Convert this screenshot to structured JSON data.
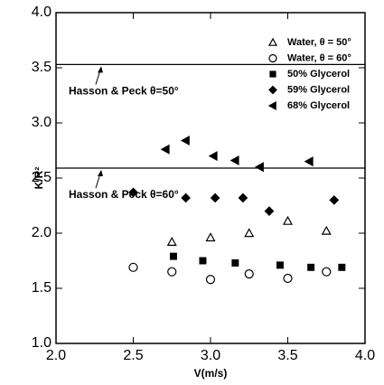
{
  "chart_data": {
    "type": "scatter",
    "xlabel": "V(m/s)",
    "ylabel": "K/R²",
    "xlim": [
      2.0,
      4.0
    ],
    "ylim": [
      1.0,
      4.0
    ],
    "xticks": [
      {
        "value": 2.0,
        "label": "2.0"
      },
      {
        "value": 2.5,
        "label": "2.5"
      },
      {
        "value": 3.0,
        "label": "3.0"
      },
      {
        "value": 3.5,
        "label": "3.5"
      },
      {
        "value": 4.0,
        "label": "4.0"
      }
    ],
    "yticks": [
      {
        "value": 1.0,
        "label": "1.0"
      },
      {
        "value": 1.5,
        "label": "1.5"
      },
      {
        "value": 2.0,
        "label": "2.0"
      },
      {
        "value": 2.5,
        "label": "2.5"
      },
      {
        "value": 3.0,
        "label": "3.0"
      },
      {
        "value": 3.5,
        "label": "3.5"
      },
      {
        "value": 4.0,
        "label": "4.0"
      }
    ],
    "reference_lines": [
      {
        "label": "Hasson & Peck θ=50°",
        "value": 3.53
      },
      {
        "label": "Hasson & Peck θ=60°",
        "value": 2.59
      }
    ],
    "series": [
      {
        "name": "Water,  θ = 50°",
        "marker": "triangle-open",
        "color": "#000000",
        "x": [
          2.75,
          3.0,
          3.25,
          3.5,
          3.75
        ],
        "values": [
          1.92,
          1.96,
          2.0,
          2.11,
          2.02
        ]
      },
      {
        "name": "Water,  θ = 60°",
        "marker": "circle-open",
        "color": "#000000",
        "x": [
          2.5,
          2.75,
          3.0,
          3.25,
          3.5,
          3.75
        ],
        "values": [
          1.69,
          1.65,
          1.58,
          1.63,
          1.59,
          1.65
        ]
      },
      {
        "name": "50% Glycerol",
        "marker": "square",
        "color": "#000000",
        "x": [
          2.76,
          2.95,
          3.16,
          3.45,
          3.65,
          3.85
        ],
        "values": [
          1.79,
          1.75,
          1.73,
          1.71,
          1.69,
          1.69
        ]
      },
      {
        "name": "59% Glycerol",
        "marker": "diamond",
        "color": "#000000",
        "x": [
          2.5,
          2.84,
          3.03,
          3.21,
          3.38,
          3.8
        ],
        "values": [
          2.37,
          2.32,
          2.32,
          2.32,
          2.2,
          2.3
        ]
      },
      {
        "name": "68% Glycerol",
        "marker": "triangle-left",
        "color": "#000000",
        "x": [
          2.71,
          2.84,
          3.02,
          3.16,
          3.32,
          3.64
        ],
        "values": [
          2.76,
          2.84,
          2.7,
          2.66,
          2.6,
          2.65
        ]
      }
    ]
  }
}
